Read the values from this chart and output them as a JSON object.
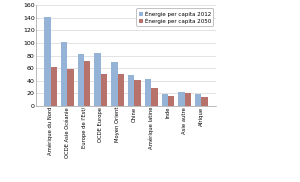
{
  "labels_display": [
    "Amérique du Nord",
    "OCDE Asie Océanie",
    "Europe de l'Est/",
    "OCDE Europe",
    "Moyen Orient",
    "Chine",
    "Amérique latine",
    "Inde",
    "Asie autre",
    "Afrique"
  ],
  "values_2012": [
    142,
    101,
    82,
    84,
    70,
    49,
    42,
    18,
    21,
    18
  ],
  "values_2050": [
    62,
    59,
    72,
    50,
    51,
    41,
    28,
    15,
    20,
    13
  ],
  "color_2012": "#95B3D7",
  "color_2050": "#B8726C",
  "legend_2012": "Énergie per capita 2012",
  "legend_2050": "Énergie per capita 2050",
  "ylim": [
    0,
    160
  ],
  "yticks": [
    0,
    20,
    40,
    60,
    80,
    100,
    120,
    140,
    160
  ],
  "background_color": "#FFFFFF",
  "grid_color": "#D8D8D8"
}
